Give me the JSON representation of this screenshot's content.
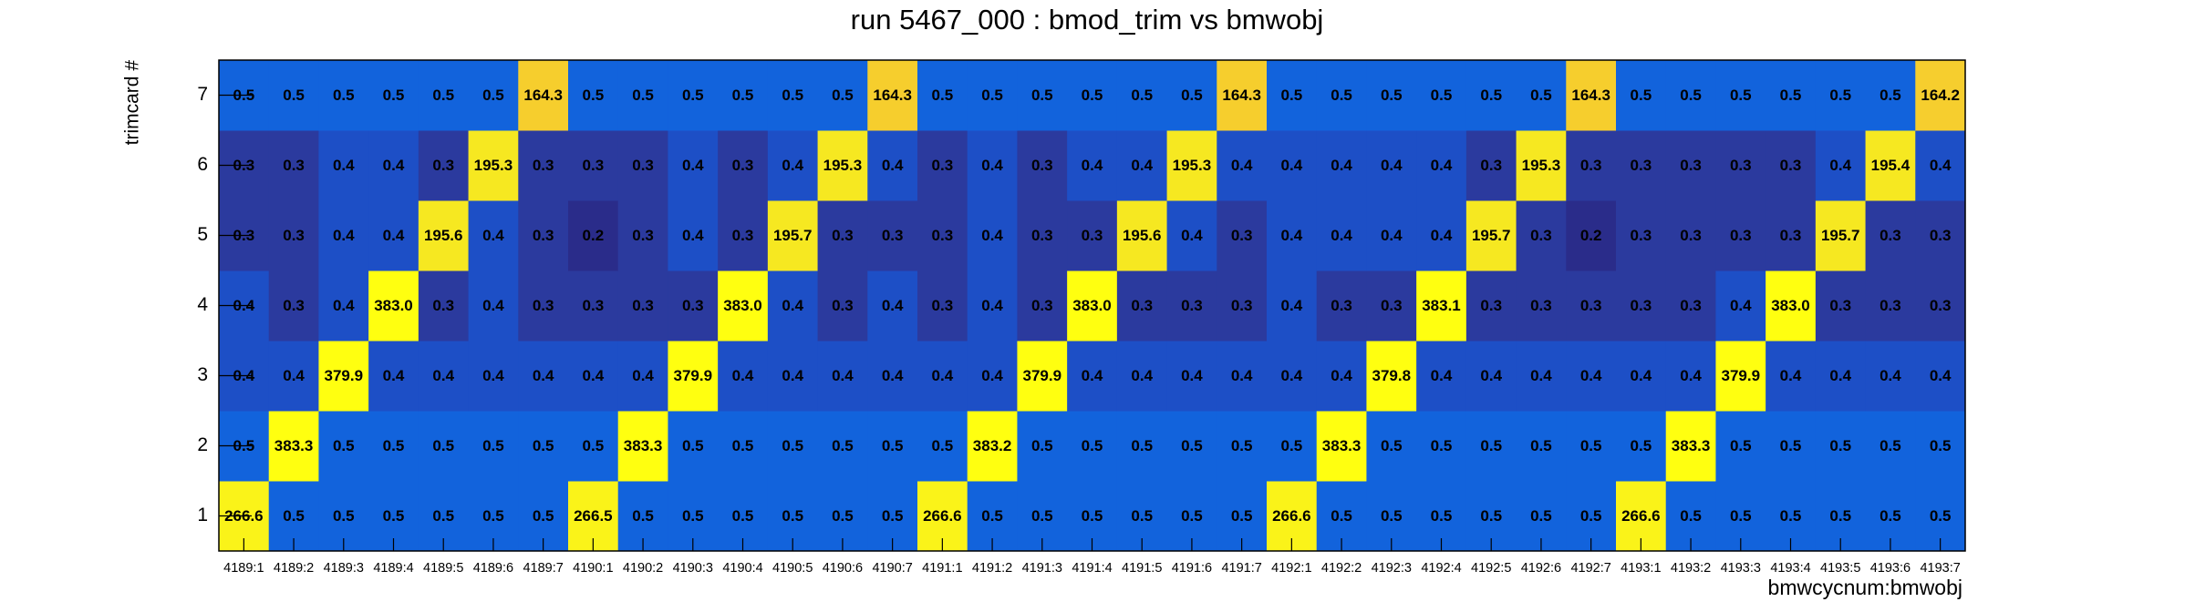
{
  "chart_data": {
    "type": "heatmap",
    "title": "run 5467_000 : bmod_trim vs bmwobj",
    "x_label": "bmwcycnum:bmwobj",
    "y_label": "trimcard #",
    "x_categories": [
      "4189:1",
      "4189:2",
      "4189:3",
      "4189:4",
      "4189:5",
      "4189:6",
      "4189:7",
      "4190:1",
      "4190:2",
      "4190:3",
      "4190:4",
      "4190:5",
      "4190:6",
      "4190:7",
      "4191:1",
      "4191:2",
      "4191:3",
      "4191:4",
      "4191:5",
      "4191:6",
      "4191:7",
      "4192:1",
      "4192:2",
      "4192:3",
      "4192:4",
      "4192:5",
      "4192:6",
      "4192:7",
      "4193:1",
      "4193:2",
      "4193:3",
      "4193:4",
      "4193:5",
      "4193:6",
      "4193:7"
    ],
    "y_categories": [
      1,
      2,
      3,
      4,
      5,
      6,
      7
    ],
    "log_z": true,
    "palette": [
      {
        "stop": 0,
        "color": "#2a2c8a"
      },
      {
        "stop": 0.054,
        "color": "#2b3a9e"
      },
      {
        "stop": 0.092,
        "color": "#1d4fc6"
      },
      {
        "stop": 0.121,
        "color": "#1263dc"
      },
      {
        "stop": 0.5,
        "color": "#24a09a"
      },
      {
        "stop": 0.887,
        "color": "#f6cd2e"
      },
      {
        "stop": 0.91,
        "color": "#f6e821"
      },
      {
        "stop": 1,
        "color": "#ffff10"
      }
    ],
    "z": [
      [
        266.6,
        0.5,
        0.5,
        0.5,
        0.5,
        0.5,
        0.5,
        266.5,
        0.5,
        0.5,
        0.5,
        0.5,
        0.5,
        0.5,
        266.6,
        0.5,
        0.5,
        0.5,
        0.5,
        0.5,
        0.5,
        266.6,
        0.5,
        0.5,
        0.5,
        0.5,
        0.5,
        0.5,
        266.6,
        0.5,
        0.5,
        0.5,
        0.5,
        0.5,
        0.5
      ],
      [
        0.5,
        383.3,
        0.5,
        0.5,
        0.5,
        0.5,
        0.5,
        0.5,
        383.3,
        0.5,
        0.5,
        0.5,
        0.5,
        0.5,
        0.5,
        383.2,
        0.5,
        0.5,
        0.5,
        0.5,
        0.5,
        0.5,
        383.3,
        0.5,
        0.5,
        0.5,
        0.5,
        0.5,
        0.5,
        383.3,
        0.5,
        0.5,
        0.5,
        0.5,
        0.5
      ],
      [
        0.4,
        0.4,
        379.9,
        0.4,
        0.4,
        0.4,
        0.4,
        0.4,
        0.4,
        379.9,
        0.4,
        0.4,
        0.4,
        0.4,
        0.4,
        0.4,
        379.9,
        0.4,
        0.4,
        0.4,
        0.4,
        0.4,
        0.4,
        379.8,
        0.4,
        0.4,
        0.4,
        0.4,
        0.4,
        0.4,
        379.9,
        0.4,
        0.4,
        0.4,
        0.4
      ],
      [
        0.4,
        0.3,
        0.4,
        383,
        0.3,
        0.4,
        0.3,
        0.3,
        0.3,
        0.3,
        383,
        0.4,
        0.3,
        0.4,
        0.3,
        0.4,
        0.3,
        383,
        0.3,
        0.3,
        0.3,
        0.4,
        0.3,
        0.3,
        383.1,
        0.3,
        0.3,
        0.3,
        0.3,
        0.3,
        0.4,
        383,
        0.3,
        0.3,
        0.3
      ],
      [
        0.3,
        0.3,
        0.4,
        0.4,
        195.6,
        0.4,
        0.3,
        0.2,
        0.3,
        0.4,
        0.3,
        195.7,
        0.3,
        0.3,
        0.3,
        0.4,
        0.3,
        0.3,
        195.6,
        0.4,
        0.3,
        0.4,
        0.4,
        0.4,
        0.4,
        195.7,
        0.3,
        0.2,
        0.3,
        0.3,
        0.3,
        0.3,
        195.7,
        0.3,
        0.3
      ],
      [
        0.3,
        0.3,
        0.4,
        0.4,
        0.3,
        195.3,
        0.3,
        0.3,
        0.3,
        0.4,
        0.3,
        0.4,
        195.3,
        0.4,
        0.3,
        0.4,
        0.3,
        0.4,
        0.4,
        195.3,
        0.4,
        0.4,
        0.4,
        0.4,
        0.4,
        0.3,
        195.3,
        0.3,
        0.3,
        0.3,
        0.3,
        0.3,
        0.4,
        195.4,
        0.4
      ],
      [
        0.5,
        0.5,
        0.5,
        0.5,
        0.5,
        0.5,
        164.3,
        0.5,
        0.5,
        0.5,
        0.5,
        0.5,
        0.5,
        164.3,
        0.5,
        0.5,
        0.5,
        0.5,
        0.5,
        0.5,
        164.3,
        0.5,
        0.5,
        0.5,
        0.5,
        0.5,
        0.5,
        164.3,
        0.5,
        0.5,
        0.5,
        0.5,
        0.5,
        0.5,
        164.2
      ]
    ],
    "value_labels": [
      [
        "266.6",
        "0.5",
        "0.5",
        "0.5",
        "0.5",
        "0.5",
        "0.5",
        "266.5",
        "0.5",
        "0.5",
        "0.5",
        "0.5",
        "0.5",
        "0.5",
        "266.6",
        "0.5",
        "0.5",
        "0.5",
        "0.5",
        "0.5",
        "0.5",
        "266.6",
        "0.5",
        "0.5",
        "0.5",
        "0.5",
        "0.5",
        "0.5",
        "266.6",
        "0.5",
        "0.5",
        "0.5",
        "0.5",
        "0.5",
        "0.5"
      ],
      [
        "0.5",
        "383.3",
        "0.5",
        "0.5",
        "0.5",
        "0.5",
        "0.5",
        "0.5",
        "383.3",
        "0.5",
        "0.5",
        "0.5",
        "0.5",
        "0.5",
        "0.5",
        "383.2",
        "0.5",
        "0.5",
        "0.5",
        "0.5",
        "0.5",
        "0.5",
        "383.3",
        "0.5",
        "0.5",
        "0.5",
        "0.5",
        "0.5",
        "0.5",
        "383.3",
        "0.5",
        "0.5",
        "0.5",
        "0.5",
        "0.5"
      ],
      [
        "0.4",
        "0.4",
        "379.9",
        "0.4",
        "0.4",
        "0.4",
        "0.4",
        "0.4",
        "0.4",
        "379.9",
        "0.4",
        "0.4",
        "0.4",
        "0.4",
        "0.4",
        "0.4",
        "379.9",
        "0.4",
        "0.4",
        "0.4",
        "0.4",
        "0.4",
        "0.4",
        "379.8",
        "0.4",
        "0.4",
        "0.4",
        "0.4",
        "0.4",
        "0.4",
        "379.9",
        "0.4",
        "0.4",
        "0.4",
        "0.4"
      ],
      [
        "0.4",
        "0.3",
        "0.4",
        "383.0",
        "0.3",
        "0.4",
        "0.3",
        "0.3",
        "0.3",
        "0.3",
        "383.0",
        "0.4",
        "0.3",
        "0.4",
        "0.3",
        "0.4",
        "0.3",
        "383.0",
        "0.3",
        "0.3",
        "0.3",
        "0.4",
        "0.3",
        "0.3",
        "383.1",
        "0.3",
        "0.3",
        "0.3",
        "0.3",
        "0.3",
        "0.4",
        "383.0",
        "0.3",
        "0.3",
        "0.3"
      ],
      [
        "0.3",
        "0.3",
        "0.4",
        "0.4",
        "195.6",
        "0.4",
        "0.3",
        "0.2",
        "0.3",
        "0.4",
        "0.3",
        "195.7",
        "0.3",
        "0.3",
        "0.3",
        "0.4",
        "0.3",
        "0.3",
        "195.6",
        "0.4",
        "0.3",
        "0.4",
        "0.4",
        "0.4",
        "0.4",
        "195.7",
        "0.3",
        "0.2",
        "0.3",
        "0.3",
        "0.3",
        "0.3",
        "195.7",
        "0.3",
        "0.3"
      ],
      [
        "0.3",
        "0.3",
        "0.4",
        "0.4",
        "0.3",
        "195.3",
        "0.3",
        "0.3",
        "0.3",
        "0.4",
        "0.3",
        "0.4",
        "195.3",
        "0.4",
        "0.3",
        "0.4",
        "0.3",
        "0.4",
        "0.4",
        "195.3",
        "0.4",
        "0.4",
        "0.4",
        "0.4",
        "0.4",
        "0.3",
        "195.3",
        "0.3",
        "0.3",
        "0.3",
        "0.3",
        "0.3",
        "0.4",
        "195.4",
        "0.4"
      ],
      [
        "0.5",
        "0.5",
        "0.5",
        "0.5",
        "0.5",
        "0.5",
        "164.3",
        "0.5",
        "0.5",
        "0.5",
        "0.5",
        "0.5",
        "0.5",
        "164.3",
        "0.5",
        "0.5",
        "0.5",
        "0.5",
        "0.5",
        "0.5",
        "164.3",
        "0.5",
        "0.5",
        "0.5",
        "0.5",
        "0.5",
        "0.5",
        "164.3",
        "0.5",
        "0.5",
        "0.5",
        "0.5",
        "0.5",
        "0.5",
        "164.2"
      ]
    ]
  }
}
